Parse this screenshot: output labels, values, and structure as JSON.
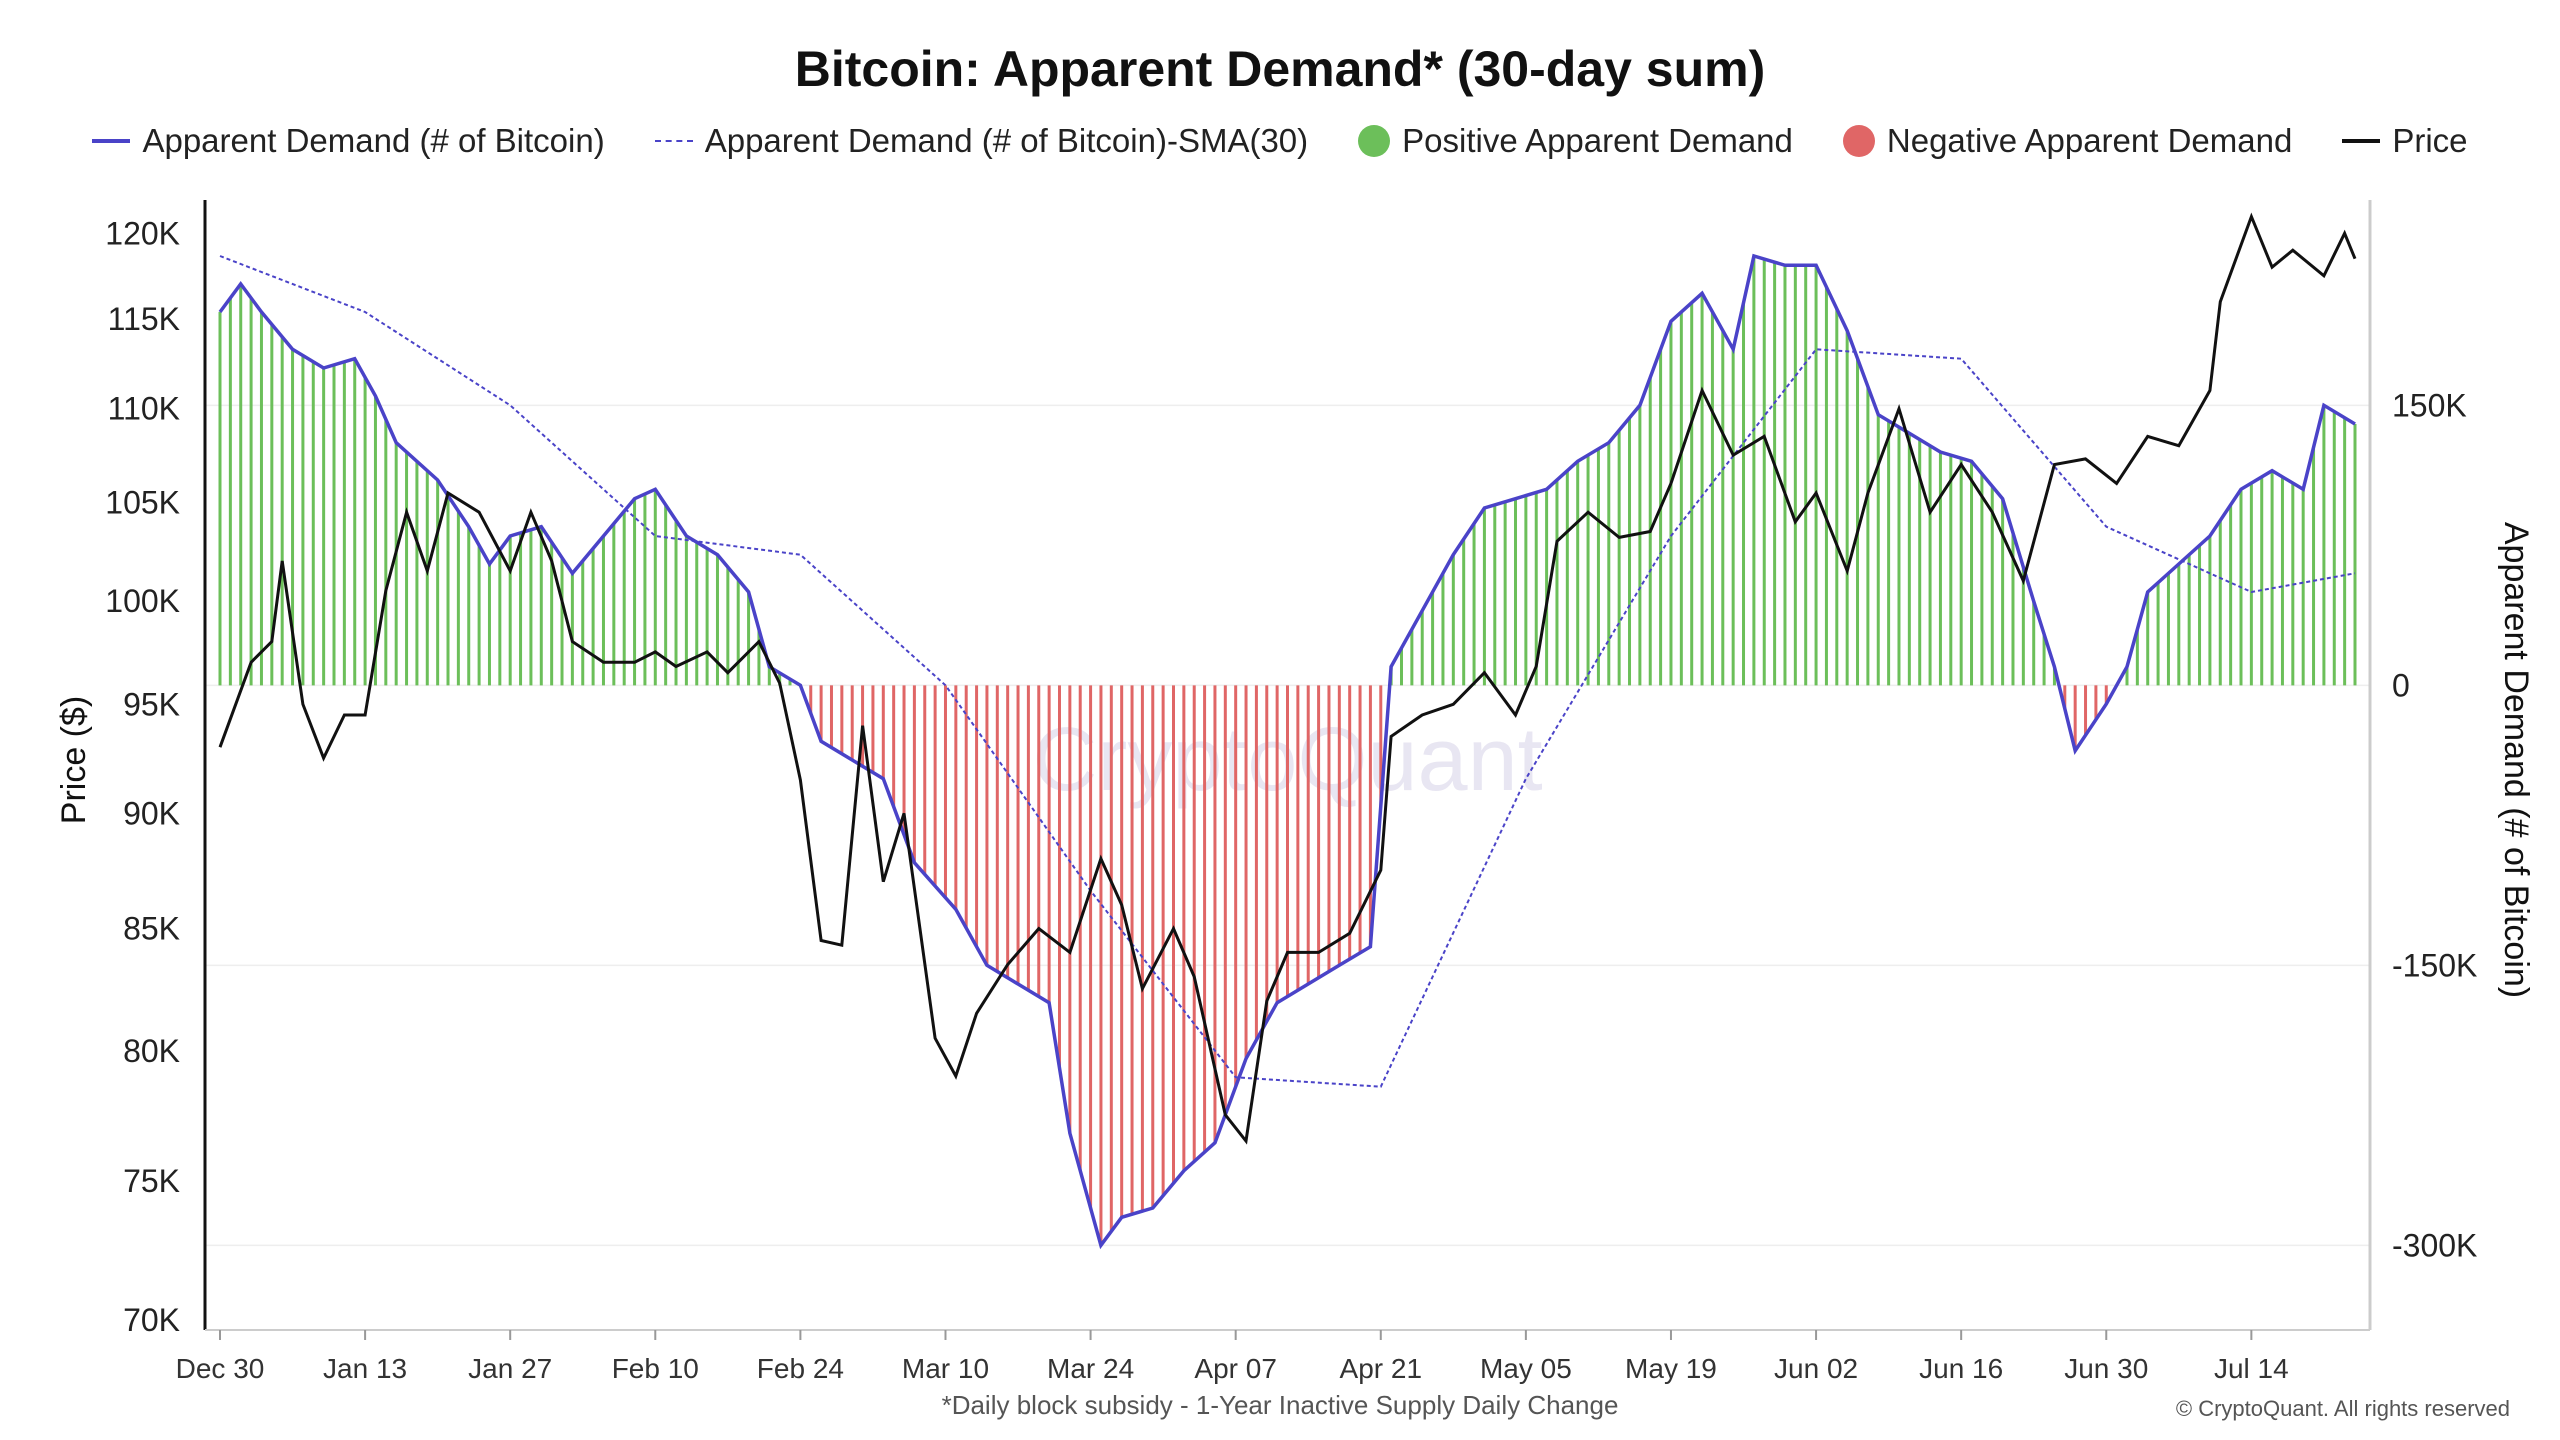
{
  "page_title": "Bitcoin: Apparent Demand* (30-day sum)",
  "legend": [
    {
      "label": "Apparent Demand (# of Bitcoin)",
      "swatch": "line",
      "color": "#4a43c8"
    },
    {
      "label": "Apparent Demand (# of Bitcoin)-SMA(30)",
      "swatch": "dash",
      "color": "#4a43c8"
    },
    {
      "label": "Positive Apparent Demand",
      "swatch": "dot",
      "color": "#6cbf5a"
    },
    {
      "label": "Negative Apparent Demand",
      "swatch": "dot",
      "color": "#e06666"
    },
    {
      "label": "Price",
      "swatch": "black",
      "color": "#111111"
    }
  ],
  "footnote": "*Daily block subsidy - 1-Year Inactive Supply Daily Change",
  "credit": "© CryptoQuant. All rights reserved",
  "watermark": "CryptoQuant",
  "chart_data": {
    "type": "bar",
    "title": "Bitcoin: Apparent Demand* (30-day sum)",
    "x_start": "2024-12-30",
    "x_end": "2025-07-24",
    "x_ticks": [
      "Dec 30",
      "Jan 13",
      "Jan 27",
      "Feb 10",
      "Feb 24",
      "Mar 10",
      "Mar 24",
      "Apr 07",
      "Apr 21",
      "May 05",
      "May 19",
      "Jun 02",
      "Jun 16",
      "Jun 30",
      "Jul 14"
    ],
    "y_left": {
      "label": "Price ($)",
      "ylim": [
        70000,
        122000
      ],
      "ticks": [
        70000,
        75000,
        80000,
        85000,
        90000,
        95000,
        100000,
        105000,
        110000,
        115000,
        120000
      ],
      "tick_labels": [
        "70K",
        "75K",
        "80K",
        "85K",
        "90K",
        "95K",
        "100K",
        "105K",
        "110K",
        "115K",
        "120K"
      ],
      "scale": "log"
    },
    "y_right": {
      "label": "Apparent Demand (# of Bitcoin)",
      "ylim": [
        -340000,
        260000
      ],
      "ticks": [
        -300000,
        -150000,
        0,
        150000
      ],
      "tick_labels": [
        "-300K",
        "-150K",
        "0",
        "150K"
      ]
    },
    "colors": {
      "positive": "#6cbf5a",
      "negative": "#e06666",
      "demand_line": "#4a43c8",
      "sma_line": "#4a43c8",
      "price_line": "#111111"
    },
    "grid": true,
    "legend_position": "top",
    "series": [
      {
        "name": "Apparent Demand (# of Bitcoin)",
        "points": [
          [
            "2024-12-30",
            200000
          ],
          [
            "2025-01-01",
            215000
          ],
          [
            "2025-01-03",
            200000
          ],
          [
            "2025-01-06",
            180000
          ],
          [
            "2025-01-09",
            170000
          ],
          [
            "2025-01-12",
            175000
          ],
          [
            "2025-01-14",
            155000
          ],
          [
            "2025-01-16",
            130000
          ],
          [
            "2025-01-20",
            110000
          ],
          [
            "2025-01-23",
            85000
          ],
          [
            "2025-01-25",
            65000
          ],
          [
            "2025-01-27",
            80000
          ],
          [
            "2025-01-30",
            85000
          ],
          [
            "2025-02-02",
            60000
          ],
          [
            "2025-02-05",
            80000
          ],
          [
            "2025-02-08",
            100000
          ],
          [
            "2025-02-10",
            105000
          ],
          [
            "2025-02-13",
            80000
          ],
          [
            "2025-02-16",
            70000
          ],
          [
            "2025-02-19",
            50000
          ],
          [
            "2025-02-21",
            10000
          ],
          [
            "2025-02-24",
            0
          ],
          [
            "2025-02-26",
            -30000
          ],
          [
            "2025-03-01",
            -40000
          ],
          [
            "2025-03-04",
            -50000
          ],
          [
            "2025-03-07",
            -95000
          ],
          [
            "2025-03-11",
            -120000
          ],
          [
            "2025-03-14",
            -150000
          ],
          [
            "2025-03-17",
            -160000
          ],
          [
            "2025-03-20",
            -170000
          ],
          [
            "2025-03-22",
            -240000
          ],
          [
            "2025-03-25",
            -300000
          ],
          [
            "2025-03-27",
            -285000
          ],
          [
            "2025-03-30",
            -280000
          ],
          [
            "2025-04-02",
            -260000
          ],
          [
            "2025-04-05",
            -245000
          ],
          [
            "2025-04-08",
            -200000
          ],
          [
            "2025-04-11",
            -170000
          ],
          [
            "2025-04-14",
            -160000
          ],
          [
            "2025-04-17",
            -150000
          ],
          [
            "2025-04-20",
            -140000
          ],
          [
            "2025-04-22",
            10000
          ],
          [
            "2025-04-25",
            40000
          ],
          [
            "2025-04-28",
            70000
          ],
          [
            "2025-05-01",
            95000
          ],
          [
            "2025-05-04",
            100000
          ],
          [
            "2025-05-07",
            105000
          ],
          [
            "2025-05-10",
            120000
          ],
          [
            "2025-05-13",
            130000
          ],
          [
            "2025-05-16",
            150000
          ],
          [
            "2025-05-19",
            195000
          ],
          [
            "2025-05-22",
            210000
          ],
          [
            "2025-05-25",
            180000
          ],
          [
            "2025-05-27",
            230000
          ],
          [
            "2025-05-30",
            225000
          ],
          [
            "2025-06-02",
            225000
          ],
          [
            "2025-06-05",
            190000
          ],
          [
            "2025-06-08",
            145000
          ],
          [
            "2025-06-11",
            135000
          ],
          [
            "2025-06-14",
            125000
          ],
          [
            "2025-06-17",
            120000
          ],
          [
            "2025-06-20",
            100000
          ],
          [
            "2025-06-23",
            45000
          ],
          [
            "2025-06-25",
            10000
          ],
          [
            "2025-06-27",
            -35000
          ],
          [
            "2025-06-30",
            -10000
          ],
          [
            "2025-07-02",
            10000
          ],
          [
            "2025-07-04",
            50000
          ],
          [
            "2025-07-07",
            65000
          ],
          [
            "2025-07-10",
            80000
          ],
          [
            "2025-07-13",
            105000
          ],
          [
            "2025-07-16",
            115000
          ],
          [
            "2025-07-19",
            105000
          ],
          [
            "2025-07-21",
            150000
          ],
          [
            "2025-07-24",
            140000
          ]
        ]
      },
      {
        "name": "Apparent Demand (# of Bitcoin)-SMA(30)",
        "points": [
          [
            "2024-12-30",
            230000
          ],
          [
            "2025-01-13",
            200000
          ],
          [
            "2025-01-27",
            150000
          ],
          [
            "2025-02-10",
            80000
          ],
          [
            "2025-02-24",
            70000
          ],
          [
            "2025-03-10",
            0
          ],
          [
            "2025-03-24",
            -110000
          ],
          [
            "2025-04-07",
            -210000
          ],
          [
            "2025-04-21",
            -215000
          ],
          [
            "2025-05-05",
            -50000
          ],
          [
            "2025-05-19",
            80000
          ],
          [
            "2025-06-02",
            180000
          ],
          [
            "2025-06-16",
            175000
          ],
          [
            "2025-06-30",
            85000
          ],
          [
            "2025-07-14",
            50000
          ],
          [
            "2025-07-24",
            60000
          ]
        ]
      },
      {
        "name": "Price",
        "points": [
          [
            "2024-12-30",
            93000
          ],
          [
            "2025-01-02",
            97000
          ],
          [
            "2025-01-04",
            98000
          ],
          [
            "2025-01-05",
            102000
          ],
          [
            "2025-01-07",
            95000
          ],
          [
            "2025-01-09",
            92500
          ],
          [
            "2025-01-11",
            94500
          ],
          [
            "2025-01-13",
            94500
          ],
          [
            "2025-01-15",
            100500
          ],
          [
            "2025-01-17",
            104500
          ],
          [
            "2025-01-19",
            101500
          ],
          [
            "2025-01-21",
            105500
          ],
          [
            "2025-01-24",
            104500
          ],
          [
            "2025-01-27",
            101500
          ],
          [
            "2025-01-29",
            104500
          ],
          [
            "2025-01-31",
            102000
          ],
          [
            "2025-02-02",
            98000
          ],
          [
            "2025-02-05",
            97000
          ],
          [
            "2025-02-08",
            97000
          ],
          [
            "2025-02-10",
            97500
          ],
          [
            "2025-02-12",
            96800
          ],
          [
            "2025-02-15",
            97500
          ],
          [
            "2025-02-17",
            96500
          ],
          [
            "2025-02-20",
            98000
          ],
          [
            "2025-02-22",
            96000
          ],
          [
            "2025-02-24",
            91500
          ],
          [
            "2025-02-26",
            84500
          ],
          [
            "2025-02-28",
            84300
          ],
          [
            "2025-03-02",
            94000
          ],
          [
            "2025-03-04",
            87000
          ],
          [
            "2025-03-06",
            90000
          ],
          [
            "2025-03-09",
            80500
          ],
          [
            "2025-03-11",
            79000
          ],
          [
            "2025-03-13",
            81500
          ],
          [
            "2025-03-16",
            83500
          ],
          [
            "2025-03-19",
            85000
          ],
          [
            "2025-03-22",
            84000
          ],
          [
            "2025-03-25",
            88000
          ],
          [
            "2025-03-27",
            86000
          ],
          [
            "2025-03-29",
            82500
          ],
          [
            "2025-04-01",
            85000
          ],
          [
            "2025-04-03",
            83000
          ],
          [
            "2025-04-06",
            77500
          ],
          [
            "2025-04-08",
            76500
          ],
          [
            "2025-04-10",
            82000
          ],
          [
            "2025-04-12",
            84000
          ],
          [
            "2025-04-15",
            84000
          ],
          [
            "2025-04-18",
            84800
          ],
          [
            "2025-04-21",
            87500
          ],
          [
            "2025-04-22",
            93500
          ],
          [
            "2025-04-25",
            94500
          ],
          [
            "2025-04-28",
            95000
          ],
          [
            "2025-05-01",
            96500
          ],
          [
            "2025-05-04",
            94500
          ],
          [
            "2025-05-06",
            96800
          ],
          [
            "2025-05-08",
            103000
          ],
          [
            "2025-05-11",
            104500
          ],
          [
            "2025-05-14",
            103200
          ],
          [
            "2025-05-17",
            103500
          ],
          [
            "2025-05-19",
            106000
          ],
          [
            "2025-05-22",
            111000
          ],
          [
            "2025-05-25",
            107500
          ],
          [
            "2025-05-28",
            108500
          ],
          [
            "2025-05-31",
            104000
          ],
          [
            "2025-06-02",
            105500
          ],
          [
            "2025-06-05",
            101500
          ],
          [
            "2025-06-07",
            105500
          ],
          [
            "2025-06-10",
            110000
          ],
          [
            "2025-06-13",
            104500
          ],
          [
            "2025-06-16",
            107000
          ],
          [
            "2025-06-19",
            104500
          ],
          [
            "2025-06-22",
            101000
          ],
          [
            "2025-06-25",
            107000
          ],
          [
            "2025-06-28",
            107300
          ],
          [
            "2025-07-01",
            106000
          ],
          [
            "2025-07-04",
            108500
          ],
          [
            "2025-07-07",
            108000
          ],
          [
            "2025-07-10",
            111000
          ],
          [
            "2025-07-11",
            116000
          ],
          [
            "2025-07-14",
            121000
          ],
          [
            "2025-07-16",
            118000
          ],
          [
            "2025-07-18",
            119000
          ],
          [
            "2025-07-21",
            117500
          ],
          [
            "2025-07-23",
            120000
          ],
          [
            "2025-07-24",
            118500
          ]
        ]
      }
    ]
  }
}
